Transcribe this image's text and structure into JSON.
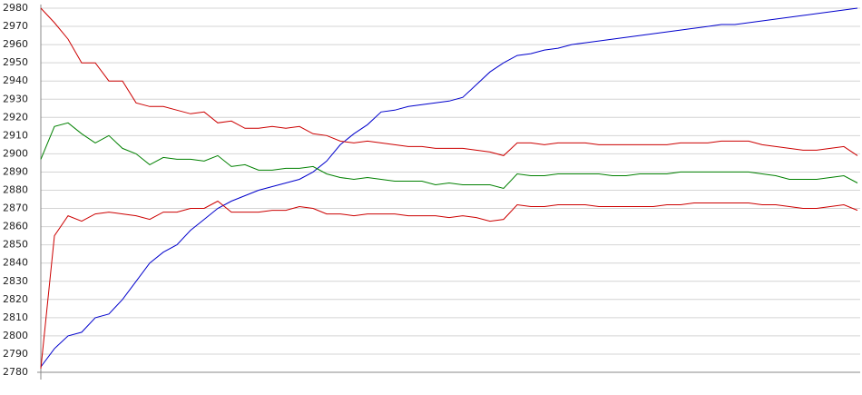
{
  "chart_data": {
    "type": "line",
    "ylim": [
      2780,
      2980
    ],
    "yticks": [
      2780,
      2790,
      2800,
      2810,
      2820,
      2830,
      2840,
      2850,
      2860,
      2870,
      2880,
      2890,
      2900,
      2910,
      2920,
      2930,
      2940,
      2950,
      2960,
      2970,
      2980
    ],
    "grid": true,
    "series": [
      {
        "color": "#0000cc",
        "values": [
          2783,
          2793,
          2800,
          2802,
          2810,
          2812,
          2820,
          2830,
          2840,
          2846,
          2850,
          2858,
          2864,
          2870,
          2874,
          2877,
          2880,
          2882,
          2884,
          2886,
          2890,
          2896,
          2905,
          2911,
          2916,
          2923,
          2924,
          2926,
          2927,
          2928,
          2929,
          2931,
          2938,
          2945,
          2950,
          2954,
          2955,
          2957,
          2958,
          2960,
          2961,
          2962,
          2963,
          2964,
          2965,
          2966,
          2967,
          2968,
          2969,
          2970,
          2971,
          2971,
          2972,
          2973,
          2974,
          2975,
          2976,
          2977,
          2978,
          2979,
          2980
        ]
      },
      {
        "color": "#cc0000",
        "values": [
          2980,
          2972,
          2963,
          2950,
          2950,
          2940,
          2940,
          2928,
          2926,
          2926,
          2924,
          2922,
          2923,
          2917,
          2918,
          2914,
          2914,
          2915,
          2914,
          2915,
          2911,
          2910,
          2907,
          2906,
          2907,
          2906,
          2905,
          2904,
          2904,
          2903,
          2903,
          2903,
          2902,
          2901,
          2899,
          2906,
          2906,
          2905,
          2906,
          2906,
          2906,
          2905,
          2905,
          2905,
          2905,
          2905,
          2905,
          2906,
          2906,
          2906,
          2907,
          2907,
          2907,
          2905,
          2904,
          2903,
          2902,
          2902,
          2903,
          2904,
          2899
        ]
      },
      {
        "color": "#008000",
        "values": [
          2897,
          2915,
          2917,
          2911,
          2906,
          2910,
          2903,
          2900,
          2894,
          2898,
          2897,
          2897,
          2896,
          2899,
          2893,
          2894,
          2891,
          2891,
          2892,
          2892,
          2893,
          2889,
          2887,
          2886,
          2887,
          2886,
          2885,
          2885,
          2885,
          2883,
          2884,
          2883,
          2883,
          2883,
          2881,
          2889,
          2888,
          2888,
          2889,
          2889,
          2889,
          2889,
          2888,
          2888,
          2889,
          2889,
          2889,
          2890,
          2890,
          2890,
          2890,
          2890,
          2890,
          2889,
          2888,
          2886,
          2886,
          2886,
          2887,
          2888,
          2884
        ]
      },
      {
        "color": "#cc0000",
        "values": [
          2782,
          2855,
          2866,
          2863,
          2867,
          2868,
          2867,
          2866,
          2864,
          2868,
          2868,
          2870,
          2870,
          2874,
          2868,
          2868,
          2868,
          2869,
          2869,
          2871,
          2870,
          2867,
          2867,
          2866,
          2867,
          2867,
          2867,
          2866,
          2866,
          2866,
          2865,
          2866,
          2865,
          2863,
          2864,
          2872,
          2871,
          2871,
          2872,
          2872,
          2872,
          2871,
          2871,
          2871,
          2871,
          2871,
          2872,
          2872,
          2873,
          2873,
          2873,
          2873,
          2873,
          2872,
          2872,
          2871,
          2870,
          2870,
          2871,
          2872,
          2869
        ]
      }
    ]
  }
}
